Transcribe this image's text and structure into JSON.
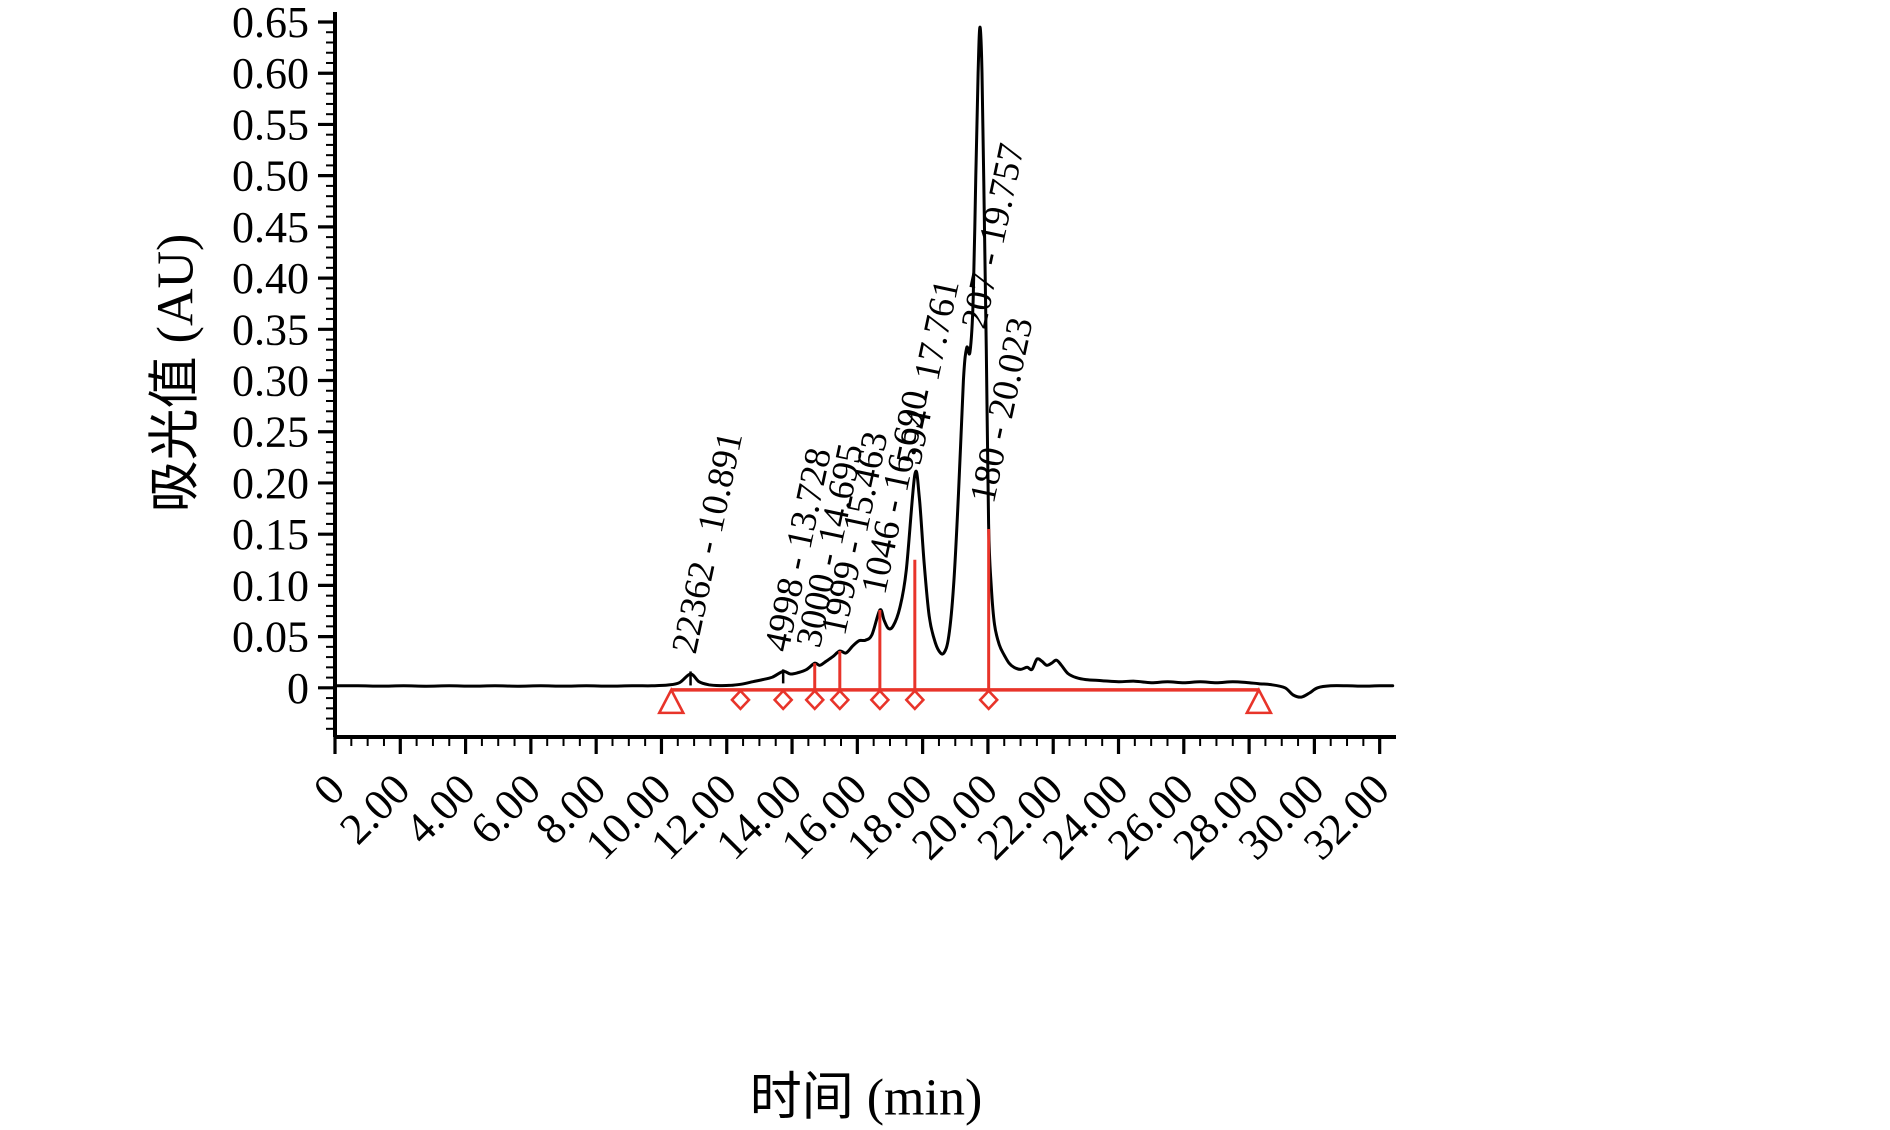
{
  "figure": {
    "background": "#ffffff",
    "trace_color": "#000000",
    "integration_color": "#e8342a",
    "text_color": "#000000"
  },
  "chart_data": {
    "type": "line",
    "title": "",
    "xlabel": "时间 (min)",
    "ylabel": "吸光值 (AU)",
    "xlim": [
      0,
      32.5
    ],
    "ylim": [
      -0.048,
      0.65
    ],
    "grid": false,
    "legend": null,
    "x_major_ticks": [
      0,
      2,
      4,
      6,
      8,
      10,
      12,
      14,
      16,
      18,
      20,
      22,
      24,
      26,
      28,
      30,
      32
    ],
    "x_tick_labels": [
      "0",
      "2.00",
      "4.00",
      "6.00",
      "8.00",
      "10.00",
      "12.00",
      "14.00",
      "16.00",
      "18.00",
      "20.00",
      "22.00",
      "24.00",
      "26.00",
      "28.00",
      "30.00",
      "32.00"
    ],
    "x_minor_step": 0.5,
    "y_major_step": 0.05,
    "y_minor_step": 0.01,
    "y_tick_labels": [
      "0",
      "0.05",
      "0.10",
      "0.15",
      "0.20",
      "0.25",
      "0.30",
      "0.35",
      "0.40",
      "0.45",
      "0.50",
      "0.55",
      "0.60",
      "0.65"
    ],
    "trace": [
      [
        0,
        0.002
      ],
      [
        0.7,
        0.002
      ],
      [
        1.4,
        0.0017
      ],
      [
        2.1,
        0.002
      ],
      [
        2.8,
        0.0016
      ],
      [
        3.5,
        0.002
      ],
      [
        4.2,
        0.0017
      ],
      [
        4.9,
        0.002
      ],
      [
        5.6,
        0.0016
      ],
      [
        6.3,
        0.002
      ],
      [
        7,
        0.0017
      ],
      [
        7.7,
        0.002
      ],
      [
        8.4,
        0.0017
      ],
      [
        9.1,
        0.002
      ],
      [
        9.7,
        0.002
      ],
      [
        10.2,
        0.0028
      ],
      [
        10.55,
        0.005
      ],
      [
        10.891,
        0.0135
      ],
      [
        11.15,
        0.006
      ],
      [
        11.45,
        0.003
      ],
      [
        11.8,
        0.0022
      ],
      [
        12.15,
        0.0025
      ],
      [
        12.45,
        0.0035
      ],
      [
        12.8,
        0.006
      ],
      [
        13.1,
        0.008
      ],
      [
        13.4,
        0.0105
      ],
      [
        13.728,
        0.016
      ],
      [
        13.95,
        0.0135
      ],
      [
        14.2,
        0.015
      ],
      [
        14.45,
        0.018
      ],
      [
        14.695,
        0.024
      ],
      [
        14.85,
        0.022
      ],
      [
        15.05,
        0.026
      ],
      [
        15.25,
        0.0305
      ],
      [
        15.463,
        0.036
      ],
      [
        15.65,
        0.034
      ],
      [
        15.85,
        0.0405
      ],
      [
        16.05,
        0.046
      ],
      [
        16.25,
        0.0465
      ],
      [
        16.45,
        0.052
      ],
      [
        16.69,
        0.076
      ],
      [
        16.82,
        0.066
      ],
      [
        16.95,
        0.058
      ],
      [
        17.1,
        0.0605
      ],
      [
        17.3,
        0.078
      ],
      [
        17.5,
        0.115
      ],
      [
        17.761,
        0.208
      ],
      [
        17.9,
        0.185
      ],
      [
        18.05,
        0.12
      ],
      [
        18.2,
        0.07
      ],
      [
        18.35,
        0.048
      ],
      [
        18.5,
        0.036
      ],
      [
        18.65,
        0.034
      ],
      [
        18.8,
        0.05
      ],
      [
        18.95,
        0.1
      ],
      [
        19.1,
        0.19
      ],
      [
        19.25,
        0.3
      ],
      [
        19.35,
        0.332
      ],
      [
        19.45,
        0.328
      ],
      [
        19.55,
        0.38
      ],
      [
        19.63,
        0.5
      ],
      [
        19.7,
        0.6
      ],
      [
        19.757,
        0.645
      ],
      [
        19.82,
        0.6
      ],
      [
        19.88,
        0.48
      ],
      [
        19.95,
        0.33
      ],
      [
        20.02,
        0.16
      ],
      [
        20.1,
        0.1
      ],
      [
        20.2,
        0.062
      ],
      [
        20.35,
        0.042
      ],
      [
        20.5,
        0.032
      ],
      [
        20.65,
        0.024
      ],
      [
        20.8,
        0.02
      ],
      [
        21,
        0.018
      ],
      [
        21.2,
        0.02
      ],
      [
        21.35,
        0.018
      ],
      [
        21.5,
        0.028
      ],
      [
        21.65,
        0.026
      ],
      [
        21.8,
        0.022
      ],
      [
        21.95,
        0.024
      ],
      [
        22.1,
        0.027
      ],
      [
        22.25,
        0.022
      ],
      [
        22.45,
        0.014
      ],
      [
        22.7,
        0.01
      ],
      [
        23,
        0.008
      ],
      [
        23.5,
        0.007
      ],
      [
        24,
        0.006
      ],
      [
        24.5,
        0.0065
      ],
      [
        25,
        0.005
      ],
      [
        25.5,
        0.006
      ],
      [
        26,
        0.005
      ],
      [
        26.5,
        0.006
      ],
      [
        27,
        0.005
      ],
      [
        27.5,
        0.006
      ],
      [
        28,
        0.005
      ],
      [
        28.3,
        0.004
      ],
      [
        28.7,
        0.003
      ],
      [
        29.1,
        0
      ],
      [
        29.35,
        -0.007
      ],
      [
        29.6,
        -0.009
      ],
      [
        29.85,
        -0.005
      ],
      [
        30.1,
        0
      ],
      [
        30.5,
        0.002
      ],
      [
        31,
        0.002
      ],
      [
        31.5,
        0.0017
      ],
      [
        32,
        0.002
      ],
      [
        32.4,
        0.002
      ]
    ],
    "peaks": [
      {
        "label": "22362 - 10.891",
        "rt": 10.891,
        "marker": "black-tick",
        "line_top": 0.016,
        "label_base": 0.028
      },
      {
        "label": "4998 - 13.728",
        "rt": 13.728,
        "marker": "black-tick",
        "line_top": 0.018,
        "label_base": 0.03
      },
      {
        "label": "3000 - 14.695",
        "rt": 14.695,
        "marker": "red-drop",
        "line_top": 0.024,
        "label_base": 0.034
      },
      {
        "label": "1999 - 15.463",
        "rt": 15.463,
        "marker": "red-drop",
        "line_top": 0.036,
        "label_base": 0.046
      },
      {
        "label": "1046 - 16.690",
        "rt": 16.69,
        "marker": "red-drop",
        "line_top": 0.076,
        "label_base": 0.086
      },
      {
        "label": "594 - 17.761",
        "rt": 17.761,
        "marker": "red-drop",
        "line_top": 0.125,
        "label_base": 0.212
      },
      {
        "label": "207 - 19.757",
        "rt": 19.757,
        "marker": "none",
        "line_top": 0,
        "label_base": 0.345
      },
      {
        "label": "180 - 20.023",
        "rt": 20.023,
        "marker": "red-drop",
        "line_top": 0.155,
        "label_base": 0.175
      }
    ],
    "integration": {
      "baseline_start": 10.3,
      "baseline_end": 28.3,
      "start_end_triangles": [
        10.3,
        28.3
      ],
      "boundary_diamonds": [
        12.42,
        13.728,
        14.695,
        15.463,
        16.69,
        17.761,
        20.023
      ]
    }
  }
}
